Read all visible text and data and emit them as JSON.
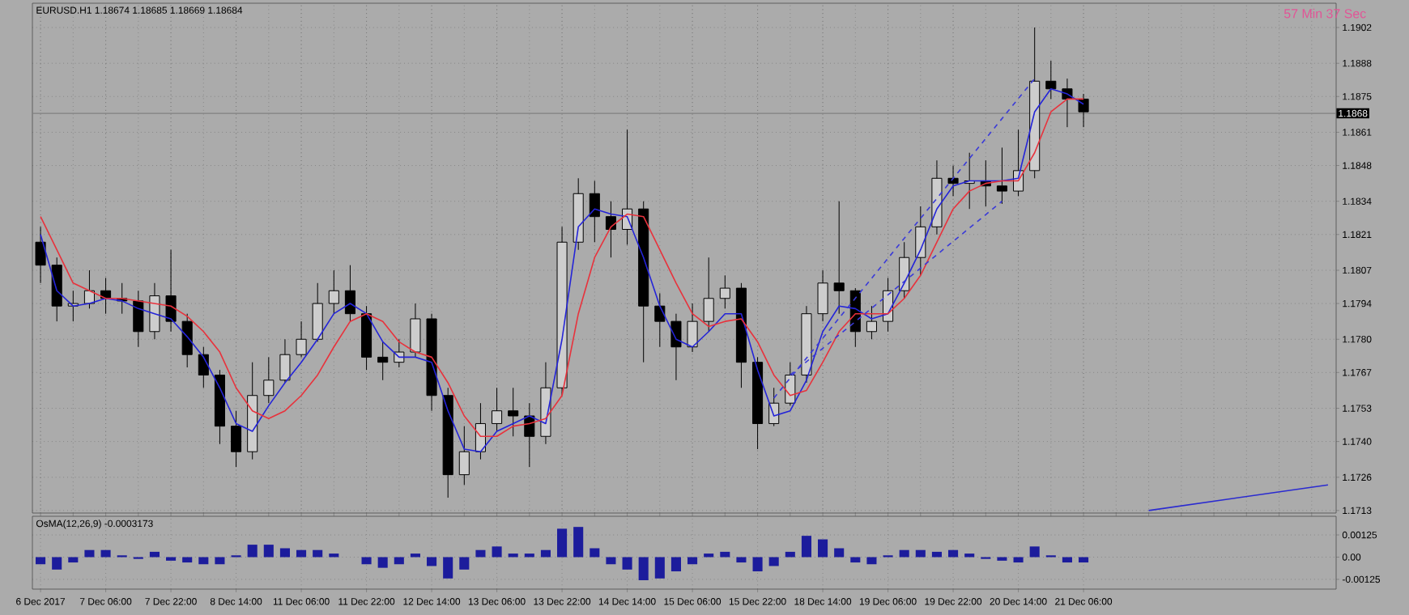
{
  "chart_data": [
    {
      "type": "candlestick",
      "title": "EURUSD.H1  1.18674 1.18685 1.18669 1.18684",
      "annotations": [
        "57 Min 37 Sec"
      ],
      "grid": true,
      "categories": [
        null,
        null,
        null,
        null,
        null,
        null,
        null,
        null,
        null,
        null,
        null,
        null,
        null,
        null,
        null,
        null,
        null,
        null,
        null,
        null,
        null,
        null,
        null,
        null,
        null,
        null,
        null,
        null,
        null,
        null,
        null,
        null,
        null,
        null,
        null,
        null,
        null,
        null,
        null,
        null,
        null,
        null,
        null,
        null,
        null,
        null,
        null,
        null,
        null,
        null,
        null,
        null,
        null,
        null,
        null,
        null,
        null,
        null,
        null,
        null,
        null,
        null,
        null,
        null,
        null,
        null,
        null,
        null,
        null,
        null,
        null,
        null,
        null,
        null,
        null,
        null,
        null,
        null,
        null,
        null
      ],
      "ohlc": [
        [
          1.1818,
          1.1824,
          1.1802,
          1.1809
        ],
        [
          1.1809,
          1.1812,
          1.1787,
          1.1793
        ],
        [
          1.1793,
          1.1799,
          1.1787,
          1.1794
        ],
        [
          1.1794,
          1.1807,
          1.1792,
          1.1799
        ],
        [
          1.1799,
          1.1804,
          1.179,
          1.1796
        ],
        [
          1.1796,
          1.1802,
          1.179,
          1.1795
        ],
        [
          1.1795,
          1.1799,
          1.1777,
          1.1783
        ],
        [
          1.1783,
          1.1802,
          1.178,
          1.1797
        ],
        [
          1.1797,
          1.1815,
          1.1783,
          1.1787
        ],
        [
          1.1787,
          1.179,
          1.1769,
          1.1774
        ],
        [
          1.1774,
          1.1777,
          1.1761,
          1.1766
        ],
        [
          1.1766,
          1.1768,
          1.1739,
          1.1746
        ],
        [
          1.1746,
          1.1752,
          1.173,
          1.1736
        ],
        [
          1.1736,
          1.1771,
          1.1733,
          1.1758
        ],
        [
          1.1758,
          1.1773,
          1.1755,
          1.1764
        ],
        [
          1.1764,
          1.178,
          1.1763,
          1.1774
        ],
        [
          1.1774,
          1.1787,
          1.1773,
          1.178
        ],
        [
          1.178,
          1.1802,
          1.1779,
          1.1794
        ],
        [
          1.1794,
          1.1807,
          1.179,
          1.1799
        ],
        [
          1.1799,
          1.1809,
          1.1787,
          1.179
        ],
        [
          1.179,
          1.1793,
          1.1768,
          1.1773
        ],
        [
          1.1773,
          1.1779,
          1.1764,
          1.1771
        ],
        [
          1.1771,
          1.178,
          1.1769,
          1.1775
        ],
        [
          1.1775,
          1.1794,
          1.1773,
          1.1788
        ],
        [
          1.1788,
          1.179,
          1.1752,
          1.1758
        ],
        [
          1.1758,
          1.1761,
          1.1718,
          1.1727
        ],
        [
          1.1727,
          1.1746,
          1.1723,
          1.1736
        ],
        [
          1.1736,
          1.1755,
          1.1733,
          1.1747
        ],
        [
          1.1747,
          1.1761,
          1.1744,
          1.1752
        ],
        [
          1.1752,
          1.1761,
          1.1742,
          1.175
        ],
        [
          1.175,
          1.1755,
          1.173,
          1.1742
        ],
        [
          1.1742,
          1.1771,
          1.1739,
          1.1761
        ],
        [
          1.1761,
          1.1824,
          1.1758,
          1.1818
        ],
        [
          1.1818,
          1.1843,
          1.1815,
          1.1837
        ],
        [
          1.1837,
          1.1842,
          1.1818,
          1.1828
        ],
        [
          1.1828,
          1.1834,
          1.1812,
          1.1823
        ],
        [
          1.1823,
          1.1862,
          1.1817,
          1.1831
        ],
        [
          1.1831,
          1.1834,
          1.1771,
          1.1793
        ],
        [
          1.1793,
          1.1798,
          1.1777,
          1.1787
        ],
        [
          1.1787,
          1.179,
          1.1764,
          1.1777
        ],
        [
          1.1777,
          1.1794,
          1.1775,
          1.1787
        ],
        [
          1.1787,
          1.1812,
          1.1783,
          1.1796
        ],
        [
          1.1796,
          1.1805,
          1.1792,
          1.18
        ],
        [
          1.18,
          1.1802,
          1.1761,
          1.1771
        ],
        [
          1.1771,
          1.1773,
          1.1737,
          1.1747
        ],
        [
          1.1747,
          1.1761,
          1.1746,
          1.1755
        ],
        [
          1.1755,
          1.1771,
          1.1754,
          1.1766
        ],
        [
          1.1766,
          1.1793,
          1.1763,
          1.179
        ],
        [
          1.179,
          1.1807,
          1.1787,
          1.1802
        ],
        [
          1.1802,
          1.1834,
          1.179,
          1.1799
        ],
        [
          1.1799,
          1.18,
          1.1777,
          1.1783
        ],
        [
          1.1783,
          1.1793,
          1.178,
          1.1787
        ],
        [
          1.1787,
          1.1804,
          1.1783,
          1.1799
        ],
        [
          1.1799,
          1.1818,
          1.1796,
          1.1812
        ],
        [
          1.1812,
          1.1832,
          1.1805,
          1.1824
        ],
        [
          1.1824,
          1.185,
          1.1821,
          1.1843
        ],
        [
          1.1843,
          1.1848,
          1.1836,
          1.1841
        ],
        [
          1.1841,
          1.1853,
          1.1831,
          1.1842
        ],
        [
          1.1842,
          1.185,
          1.1832,
          1.184
        ],
        [
          1.184,
          1.1855,
          1.1833,
          1.1838
        ],
        [
          1.1838,
          1.1862,
          1.1836,
          1.1846
        ],
        [
          1.1846,
          1.1902,
          1.1843,
          1.1881
        ],
        [
          1.1881,
          1.1889,
          1.1874,
          1.1878
        ],
        [
          1.1878,
          1.1882,
          1.1863,
          1.1874
        ],
        [
          1.1874,
          1.1876,
          1.1863,
          1.1869
        ],
        null,
        null,
        null,
        null,
        null,
        null,
        null,
        null,
        null,
        null,
        null,
        null,
        null,
        null,
        null
      ],
      "series": [
        {
          "type": "line",
          "color": "#2424d8",
          "values": [
            1.1821,
            1.1799,
            1.1793,
            1.1794,
            1.1796,
            1.1795,
            1.1792,
            1.179,
            1.1788,
            1.1781,
            1.1773,
            1.1761,
            1.1747,
            1.1744,
            1.1754,
            1.1763,
            1.1771,
            1.178,
            1.179,
            1.1794,
            1.179,
            1.1779,
            1.1773,
            1.1773,
            1.1771,
            1.1752,
            1.1737,
            1.1736,
            1.1744,
            1.1747,
            1.175,
            1.1747,
            1.178,
            1.1824,
            1.1831,
            1.1829,
            1.1828,
            1.1812,
            1.1793,
            1.178,
            1.1777,
            1.1783,
            1.179,
            1.179,
            1.1768,
            1.175,
            1.1752,
            1.1764,
            1.1783,
            1.1793,
            1.1792,
            1.1788,
            1.179,
            1.1802,
            1.1815,
            1.1831,
            1.184,
            1.1842,
            1.1842,
            1.1842,
            1.1843,
            1.1869,
            1.1878,
            1.1876,
            1.1872,
            null,
            null,
            null,
            null,
            null,
            null,
            null,
            null,
            null,
            null,
            null,
            null,
            null,
            null,
            null
          ]
        },
        {
          "type": "line",
          "color": "#e8323c",
          "values": [
            1.1828,
            1.1815,
            1.1802,
            1.1799,
            1.1796,
            1.1796,
            1.1795,
            1.1794,
            1.1793,
            1.1789,
            1.1783,
            1.1775,
            1.1761,
            1.1752,
            1.1749,
            1.1752,
            1.1758,
            1.1766,
            1.1777,
            1.1787,
            1.179,
            1.1787,
            1.1779,
            1.1775,
            1.1773,
            1.1763,
            1.175,
            1.1742,
            1.1742,
            1.1746,
            1.1747,
            1.1749,
            1.1758,
            1.179,
            1.1812,
            1.1824,
            1.1829,
            1.1828,
            1.1815,
            1.1802,
            1.179,
            1.1785,
            1.1787,
            1.1788,
            1.1779,
            1.1766,
            1.1758,
            1.176,
            1.1771,
            1.1783,
            1.179,
            1.179,
            1.179,
            1.1796,
            1.1805,
            1.1818,
            1.1831,
            1.1838,
            1.1841,
            1.1842,
            1.1842,
            1.1853,
            1.1869,
            1.1874,
            1.1874,
            null,
            null,
            null,
            null,
            null,
            null,
            null,
            null,
            null,
            null,
            null,
            null,
            null,
            null,
            null
          ]
        },
        {
          "type": "line",
          "color": "#3a3ad8",
          "line_style": "dashed",
          "values": [
            null,
            null,
            null,
            null,
            null,
            null,
            null,
            null,
            null,
            null,
            null,
            null,
            null,
            null,
            null,
            null,
            null,
            null,
            null,
            null,
            null,
            null,
            null,
            null,
            null,
            null,
            null,
            null,
            null,
            null,
            null,
            null,
            null,
            null,
            null,
            null,
            null,
            null,
            null,
            null,
            null,
            null,
            null,
            null,
            null,
            1.1757,
            null,
            null,
            null,
            null,
            null,
            null,
            null,
            null,
            null,
            null,
            null,
            null,
            null,
            null,
            null,
            1.1882,
            null,
            null,
            null,
            null,
            null,
            null,
            null,
            null,
            null,
            null,
            null,
            null,
            null,
            null,
            null,
            null,
            null,
            null
          ]
        },
        {
          "type": "line",
          "color": "#3a3ad8",
          "line_style": "dashed",
          "values": [
            null,
            null,
            null,
            null,
            null,
            null,
            null,
            null,
            null,
            null,
            null,
            null,
            null,
            null,
            null,
            null,
            null,
            null,
            null,
            null,
            null,
            null,
            null,
            null,
            null,
            null,
            null,
            null,
            null,
            null,
            null,
            null,
            null,
            null,
            null,
            null,
            null,
            null,
            null,
            null,
            null,
            null,
            null,
            null,
            null,
            null,
            1.1766,
            null,
            null,
            null,
            null,
            null,
            null,
            null,
            null,
            null,
            null,
            null,
            null,
            1.1834,
            null,
            null,
            null,
            null,
            null,
            null,
            null,
            null,
            null,
            null,
            null,
            null,
            null,
            null,
            null,
            null,
            null,
            null,
            null,
            null
          ]
        },
        {
          "type": "line",
          "color": "#2a2ad0",
          "values": [
            null,
            null,
            null,
            null,
            null,
            null,
            null,
            null,
            null,
            null,
            null,
            null,
            null,
            null,
            null,
            null,
            null,
            null,
            null,
            null,
            null,
            null,
            null,
            null,
            null,
            null,
            null,
            null,
            null,
            null,
            null,
            null,
            null,
            null,
            null,
            null,
            null,
            null,
            null,
            null,
            null,
            null,
            null,
            null,
            null,
            null,
            null,
            null,
            null,
            null,
            null,
            null,
            null,
            null,
            null,
            null,
            null,
            null,
            null,
            null,
            null,
            null,
            null,
            null,
            null,
            null,
            null,
            null,
            1.1713,
            null,
            null,
            null,
            null,
            null,
            null,
            null,
            null,
            null,
            null,
            1.1723
          ]
        }
      ],
      "ref_lines": [
        {
          "axis": "y",
          "value": 1.18684,
          "label": "1.1868",
          "color": "#808080"
        }
      ],
      "ylim": [
        1.1712,
        1.19115
      ],
      "yticks": [
        1.1713,
        1.1726,
        {
          "value": 1.174,
          "label": "1.1740"
        },
        1.1753,
        1.1767,
        {
          "value": 1.178,
          "label": "1.1780"
        },
        1.1794,
        1.1807,
        1.1821,
        1.1834,
        1.1848,
        1.1861,
        1.1875,
        1.1888,
        1.1902
      ]
    },
    {
      "type": "bar",
      "title": "OsMA(12,26,9) -0.0003173",
      "grid": true,
      "color": "#1c1c9c",
      "categories": [
        "6 Dec 2017",
        null,
        null,
        null,
        "7 Dec 06:00",
        null,
        null,
        null,
        "7 Dec 22:00",
        null,
        null,
        null,
        "8 Dec 14:00",
        null,
        null,
        null,
        "11 Dec 06:00",
        null,
        null,
        null,
        "11 Dec 22:00",
        null,
        null,
        null,
        "12 Dec 14:00",
        null,
        null,
        null,
        "13 Dec 06:00",
        null,
        null,
        null,
        "13 Dec 22:00",
        null,
        null,
        null,
        "14 Dec 14:00",
        null,
        null,
        null,
        "15 Dec 06:00",
        null,
        null,
        null,
        "15 Dec 22:00",
        null,
        null,
        null,
        "18 Dec 14:00",
        null,
        null,
        null,
        "19 Dec 06:00",
        null,
        null,
        null,
        "19 Dec 22:00",
        null,
        null,
        null,
        "20 Dec 14:00",
        null,
        null,
        null,
        "21 Dec 06:00",
        null,
        null,
        null,
        null,
        null,
        null,
        null,
        null,
        null,
        null,
        null,
        null,
        null,
        null,
        null
      ],
      "values": [
        -0.0004,
        -0.0007,
        -0.0003,
        0.0004,
        0.0004,
        0.0001,
        -0.0001,
        0.0003,
        -0.0002,
        -0.0003,
        -0.0004,
        -0.0004,
        0.0001,
        0.0007,
        0.0007,
        0.0005,
        0.0004,
        0.0004,
        0.0002,
        0,
        -0.0004,
        -0.0006,
        -0.0004,
        0.0002,
        -0.0005,
        -0.0012,
        -0.0007,
        0.0004,
        0.0006,
        0.0002,
        0.0002,
        0.0004,
        0.0016,
        0.0017,
        0.0005,
        -0.0004,
        -0.0007,
        -0.0013,
        -0.0012,
        -0.0008,
        -0.0004,
        0.0002,
        0.0003,
        -0.0003,
        -0.0008,
        -0.0005,
        0.0003,
        0.0012,
        0.001,
        0.0005,
        -0.0003,
        -0.0004,
        0.0001,
        0.0004,
        0.0004,
        0.0003,
        0.0004,
        0.0002,
        -0.0001,
        -0.0002,
        -0.0003,
        0.0006,
        0.0001,
        -0.0003,
        -0.0003,
        null,
        null,
        null,
        null,
        null,
        null,
        null,
        null,
        null,
        null,
        null,
        null,
        null,
        null,
        null
      ],
      "ylim": [
        -0.0018,
        0.0023
      ],
      "yticks": [
        {
          "value": 0.00125,
          "label": "0.00125"
        },
        {
          "value": 0,
          "label": "0.00"
        },
        {
          "value": -0.00125,
          "label": "-0.00125"
        }
      ]
    }
  ]
}
